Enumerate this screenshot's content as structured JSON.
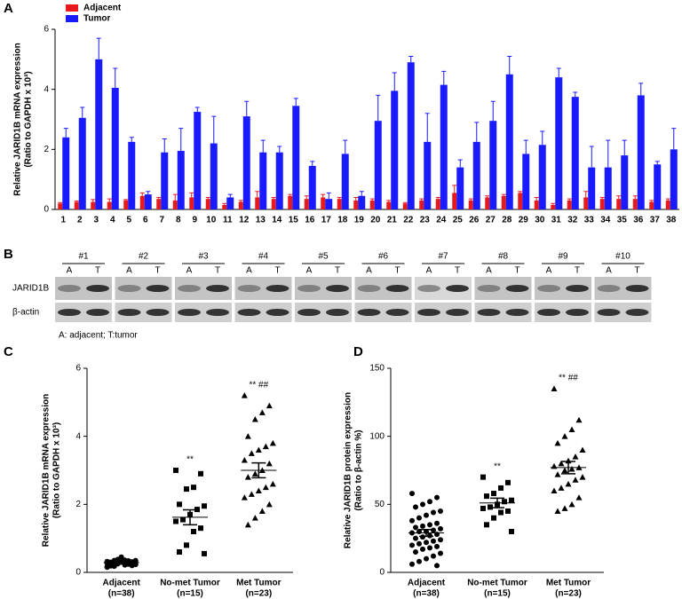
{
  "chart_data": [
    {
      "type": "bar",
      "panel_label": "A",
      "ylabel": [
        "Relative JARID1B mRNA expression",
        "(Ratio to  GAPDH x 10³)"
      ],
      "categories": [
        "1",
        "2",
        "3",
        "4",
        "5",
        "6",
        "7",
        "8",
        "9",
        "10",
        "11",
        "12",
        "13",
        "14",
        "15",
        "16",
        "17",
        "18",
        "19",
        "20",
        "21",
        "22",
        "23",
        "24",
        "25",
        "26",
        "27",
        "28",
        "29",
        "30",
        "31",
        "32",
        "33",
        "34",
        "35",
        "36",
        "37",
        "38"
      ],
      "series": [
        {
          "name": "Adjacent",
          "color": "#e8191d",
          "values": [
            0.2,
            0.25,
            0.25,
            0.25,
            0.3,
            0.45,
            0.35,
            0.3,
            0.4,
            0.35,
            0.15,
            0.25,
            0.4,
            0.35,
            0.45,
            0.35,
            0.4,
            0.35,
            0.3,
            0.3,
            0.25,
            0.2,
            0.3,
            0.35,
            0.55,
            0.3,
            0.4,
            0.45,
            0.55,
            0.3,
            0.15,
            0.3,
            0.4,
            0.35,
            0.35,
            0.35,
            0.25,
            0.3
          ],
          "errors": [
            0.03,
            0.03,
            0.08,
            0.1,
            0.03,
            0.1,
            0.05,
            0.2,
            0.15,
            0.05,
            0.05,
            0.05,
            0.2,
            0.05,
            0.05,
            0.1,
            0.1,
            0.05,
            0.1,
            0.05,
            0.05,
            0.03,
            0.05,
            0.05,
            0.25,
            0.05,
            0.05,
            0.05,
            0.05,
            0.1,
            0.05,
            0.05,
            0.2,
            0.05,
            0.1,
            0.1,
            0.05,
            0.05
          ]
        },
        {
          "name": "Tumor",
          "color": "#1a1aff",
          "values": [
            2.4,
            3.05,
            5.0,
            4.05,
            2.25,
            0.5,
            1.9,
            1.95,
            3.25,
            2.2,
            0.4,
            3.1,
            1.9,
            1.9,
            3.45,
            1.45,
            0.35,
            1.85,
            0.45,
            2.95,
            3.95,
            4.9,
            2.25,
            4.15,
            1.4,
            2.25,
            2.95,
            4.5,
            1.85,
            2.15,
            4.4,
            3.75,
            1.4,
            1.4,
            1.8,
            3.8,
            1.5,
            2.0
          ],
          "errors": [
            0.3,
            0.35,
            0.7,
            0.65,
            0.15,
            0.1,
            0.45,
            0.75,
            0.15,
            0.9,
            0.1,
            0.5,
            0.4,
            0.2,
            0.25,
            0.15,
            0.2,
            0.45,
            0.15,
            0.85,
            0.6,
            0.2,
            0.95,
            0.45,
            0.25,
            0.65,
            0.65,
            0.6,
            0.45,
            0.45,
            0.3,
            0.15,
            0.7,
            0.9,
            0.5,
            0.4,
            0.1,
            0.7
          ]
        }
      ],
      "ylim": [
        0,
        6
      ],
      "yticks": [
        0,
        2,
        4,
        6
      ],
      "legend": "top-left"
    },
    {
      "type": "scatter",
      "panel_label": "C",
      "ylabel": [
        "Relative JARID1B mRNA expression",
        "(Ratio to  GAPDH x 10³)"
      ],
      "categories": [
        "Adjacent",
        "No-met Tumor",
        "Met Tumor"
      ],
      "category_notes": [
        "(n=38)",
        "(n=15)",
        "(n=23)"
      ],
      "markers": [
        "circle",
        "square",
        "triangle"
      ],
      "groups": [
        {
          "values": [
            0.15,
            0.2,
            0.22,
            0.25,
            0.3,
            0.35,
            0.28,
            0.4,
            0.18,
            0.32,
            0.26,
            0.3,
            0.38,
            0.22,
            0.24,
            0.33,
            0.45,
            0.2,
            0.27,
            0.31,
            0.36,
            0.29,
            0.19,
            0.23,
            0.34,
            0.42,
            0.25,
            0.3,
            0.21,
            0.28,
            0.37,
            0.26,
            0.32,
            0.24,
            0.3,
            0.35,
            0.17,
            0.3
          ],
          "mean": 0.29,
          "sem": 0.04
        },
        {
          "values": [
            3.0,
            2.9,
            2.5,
            2.45,
            2.0,
            1.95,
            1.85,
            1.7,
            1.55,
            1.5,
            1.3,
            1.2,
            0.8,
            0.6,
            0.55
          ],
          "mean": 1.62,
          "sem": 0.22
        },
        {
          "values": [
            5.2,
            4.9,
            4.7,
            4.5,
            4.0,
            3.8,
            3.7,
            3.6,
            3.5,
            3.3,
            3.2,
            3.0,
            2.9,
            2.8,
            2.6,
            2.5,
            2.4,
            2.3,
            2.2,
            2.0,
            1.8,
            1.6,
            1.4
          ],
          "mean": 3.0,
          "sem": 0.22
        }
      ],
      "annotations": [
        {
          "category": 1,
          "text": "**"
        },
        {
          "category": 2,
          "text": "** ##"
        }
      ],
      "ylim": [
        0,
        6
      ],
      "yticks": [
        0,
        2,
        4,
        6
      ]
    },
    {
      "type": "scatter",
      "panel_label": "D",
      "ylabel": [
        "Relative JARID1B protein expression",
        "(Ratio to β-actin %)"
      ],
      "categories": [
        "Adjacent",
        "No-met Tumor",
        "Met Tumor"
      ],
      "category_notes": [
        "(n=38)",
        "(n=15)",
        "(n=23)"
      ],
      "markers": [
        "circle",
        "square",
        "triangle"
      ],
      "groups": [
        {
          "values": [
            58,
            55,
            52,
            50,
            48,
            45,
            44,
            42,
            40,
            38,
            36,
            35,
            34,
            33,
            32,
            31,
            30,
            30,
            29,
            28,
            27,
            26,
            25,
            24,
            23,
            22,
            21,
            20,
            19,
            18,
            17,
            15,
            14,
            12,
            10,
            8,
            6,
            5
          ],
          "mean": 29,
          "sem": 2.5
        },
        {
          "values": [
            70,
            66,
            62,
            58,
            56,
            53,
            52,
            50,
            48,
            47,
            45,
            44,
            40,
            35,
            30
          ],
          "mean": 51,
          "sem": 3.5
        },
        {
          "values": [
            135,
            112,
            105,
            100,
            95,
            90,
            85,
            82,
            80,
            78,
            77,
            76,
            75,
            72,
            70,
            68,
            65,
            62,
            60,
            55,
            50,
            47,
            45
          ],
          "mean": 77,
          "sem": 4.5
        }
      ],
      "annotations": [
        {
          "category": 1,
          "text": "**"
        },
        {
          "category": 2,
          "text": "** ##"
        }
      ],
      "ylim": [
        0,
        150
      ],
      "yticks": [
        0,
        50,
        100,
        150
      ]
    }
  ],
  "blot": {
    "panel_label": "B",
    "samples": [
      "#1",
      "#2",
      "#3",
      "#4",
      "#5",
      "#6",
      "#7",
      "#8",
      "#9",
      "#10"
    ],
    "lanes": [
      "A",
      "T"
    ],
    "rows": [
      "JARID1B",
      "β-actin"
    ],
    "caption": "A: adjacent; T:tumor"
  }
}
